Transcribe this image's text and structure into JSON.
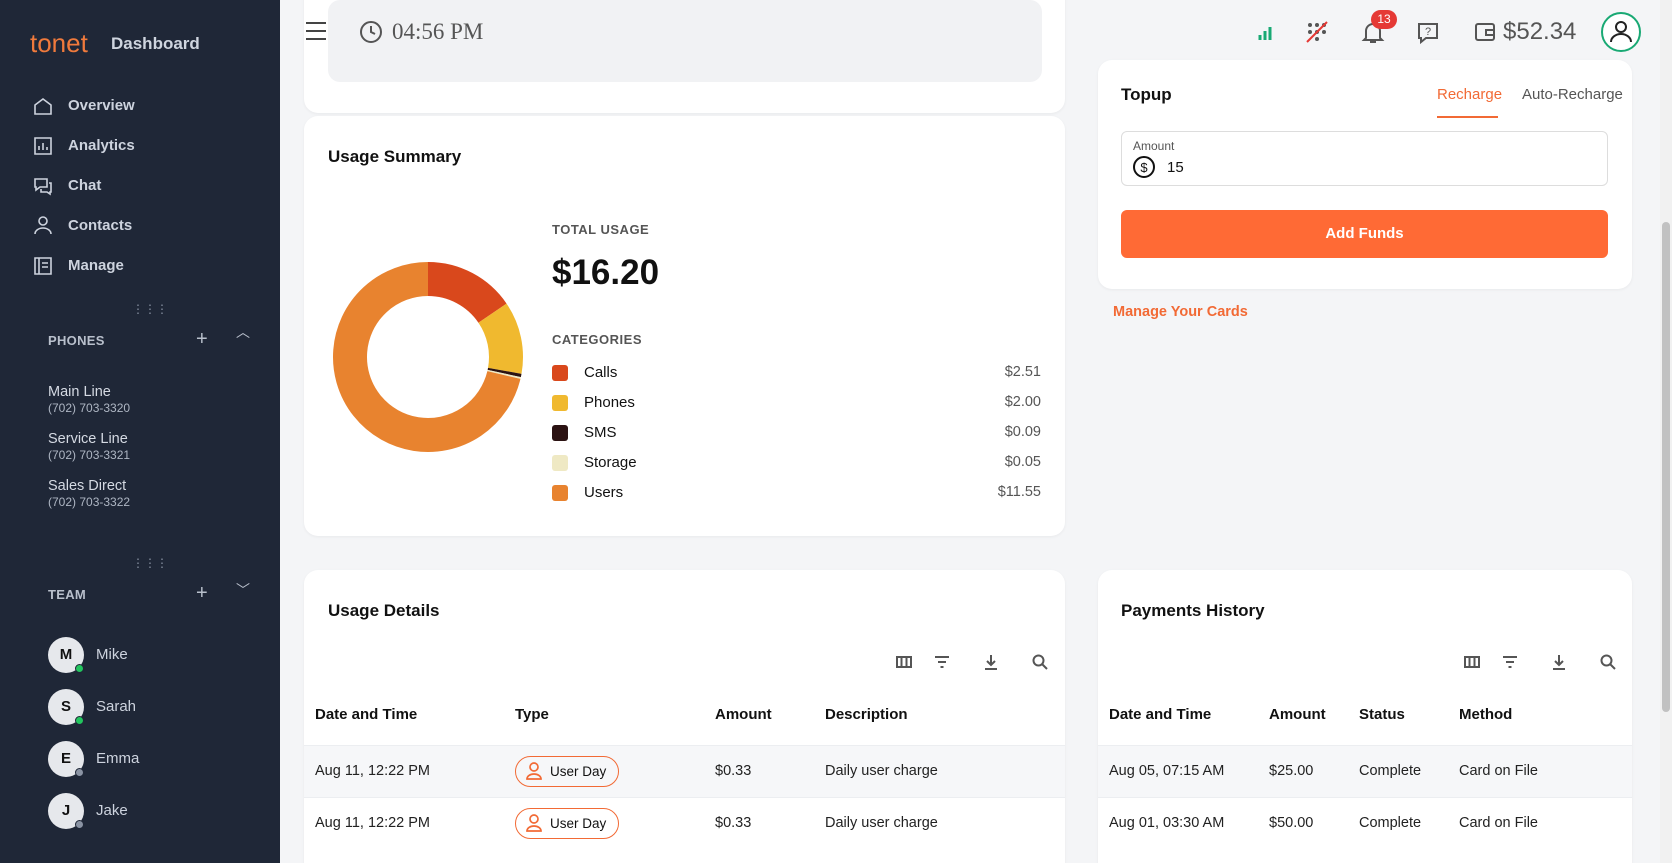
{
  "sidebar": {
    "brand": "tonet",
    "section": "Dashboard",
    "nav": [
      "Overview",
      "Analytics",
      "Chat",
      "Contacts",
      "Manage"
    ],
    "phones": {
      "title": "PHONES",
      "lines": [
        {
          "name": "Main Line",
          "number": "(702) 703-3320"
        },
        {
          "name": "Service Line",
          "number": "(702) 703-3321"
        },
        {
          "name": "Sales Direct",
          "number": "(702) 703-3322"
        }
      ]
    },
    "team": {
      "title": "TEAM",
      "members": [
        {
          "initial": "M",
          "name": "Mike"
        },
        {
          "initial": "S",
          "name": "Sarah"
        },
        {
          "initial": "E",
          "name": "Emma"
        },
        {
          "initial": "J",
          "name": "Jake"
        }
      ]
    }
  },
  "header": {
    "time": "04:56 PM",
    "notifications": "13",
    "balance": "$52.34"
  },
  "usage_summary": {
    "title": "Usage Summary",
    "total_label": "TOTAL USAGE",
    "total": "$16.20",
    "categories_label": "CATEGORIES",
    "categories": [
      {
        "name": "Calls",
        "color": "#d9481c",
        "value": 2.51,
        "value_label": "$2.51"
      },
      {
        "name": "Phones",
        "color": "#f0b92f",
        "value": 2.0,
        "value_label": "$2.00"
      },
      {
        "name": "SMS",
        "color": "#2b1212",
        "value": 0.09,
        "value_label": "$0.09"
      },
      {
        "name": "Storage",
        "color": "#efe9c4",
        "value": 0.05,
        "value_label": "$0.05"
      },
      {
        "name": "Users",
        "color": "#e8832f",
        "value": 11.55,
        "value_label": "$11.55"
      }
    ]
  },
  "topup": {
    "title": "Topup",
    "tabs": [
      "Recharge",
      "Auto-Recharge"
    ],
    "amount_label": "Amount",
    "amount": "15",
    "button": "Add Funds",
    "link": "Manage Your Cards"
  },
  "usage_details": {
    "title": "Usage Details",
    "columns": [
      "Date and Time",
      "Type",
      "Amount",
      "Description"
    ],
    "rows": [
      [
        "Aug 11, 12:22 PM",
        "User Day",
        "$0.33",
        "Daily user charge"
      ],
      [
        "Aug 11, 12:22 PM",
        "User Day",
        "$0.33",
        "Daily user charge"
      ]
    ]
  },
  "payments_history": {
    "title": "Payments History",
    "columns": [
      "Date and Time",
      "Amount",
      "Status",
      "Method"
    ],
    "rows": [
      [
        "Aug 05, 07:15 AM",
        "$25.00",
        "Complete",
        "Card on File"
      ],
      [
        "Aug 01, 03:30 AM",
        "$50.00",
        "Complete",
        "Card on File"
      ]
    ]
  }
}
